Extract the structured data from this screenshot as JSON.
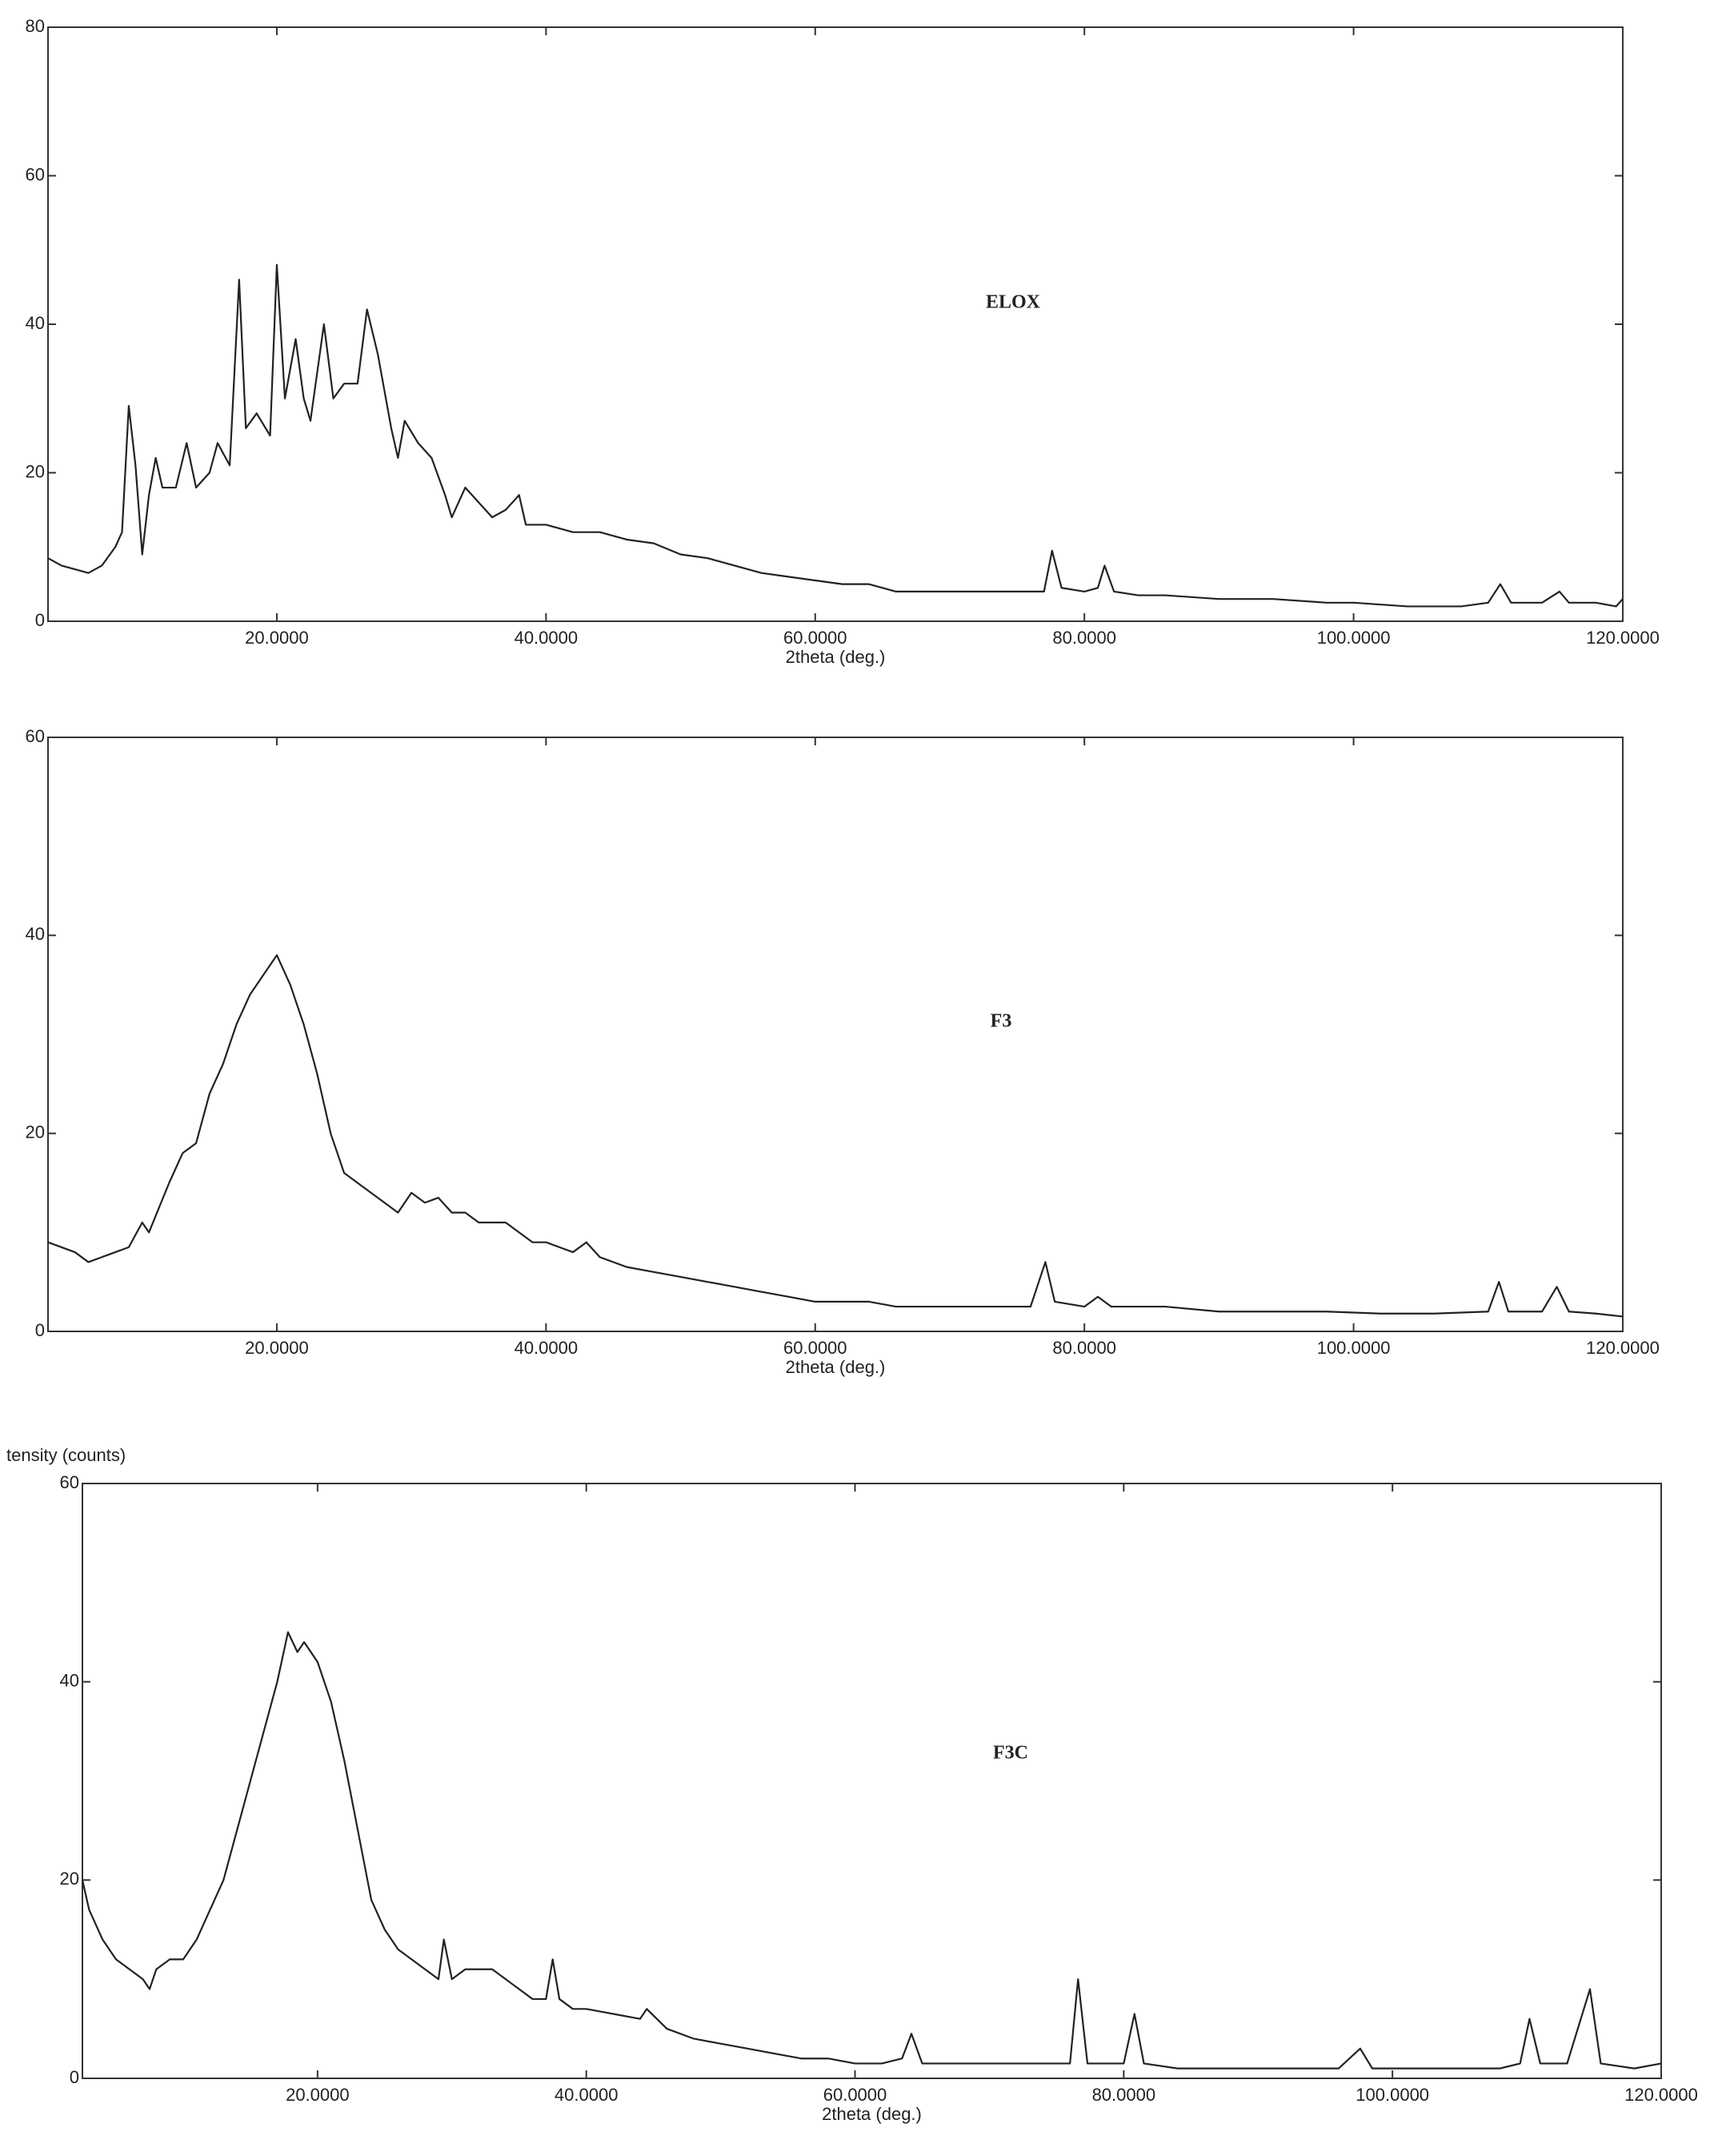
{
  "chart_data": [
    {
      "type": "line",
      "annotation": "ELOX",
      "xlabel": "2theta (deg.)",
      "color": "#222222",
      "xlim": [
        3,
        120
      ],
      "ylim": [
        0,
        80
      ],
      "xticks": [
        {
          "value": 20,
          "label": "20.0000"
        },
        {
          "value": 40,
          "label": "40.0000"
        },
        {
          "value": 60,
          "label": "60.0000"
        },
        {
          "value": 80,
          "label": "80.0000"
        },
        {
          "value": 100,
          "label": "100.0000"
        },
        {
          "value": 120,
          "label": "120.0000"
        }
      ],
      "yticks": [
        0,
        20,
        40,
        60,
        80
      ],
      "x": [
        3,
        4,
        5,
        6,
        7,
        8,
        8.5,
        9,
        9.5,
        10,
        10.5,
        11,
        11.5,
        12.5,
        13.3,
        14,
        15,
        15.6,
        16.5,
        17.2,
        17.7,
        18.5,
        19.5,
        20,
        20.6,
        21.4,
        22,
        22.5,
        23.5,
        24.2,
        25,
        26,
        26.7,
        27.5,
        28.5,
        29,
        29.5,
        30.5,
        31.5,
        32.5,
        33,
        34,
        35,
        36,
        37,
        38,
        38.5,
        40,
        42,
        44,
        46,
        48,
        50,
        52,
        54,
        56,
        58,
        60,
        62,
        64,
        66,
        68,
        70,
        72,
        74,
        76,
        77,
        77.6,
        78.3,
        80,
        81,
        81.5,
        82.2,
        84,
        86,
        90,
        94,
        98,
        100,
        104,
        108,
        110,
        110.9,
        111.7,
        114,
        115.3,
        116,
        118,
        119.5,
        120
      ],
      "values": [
        8.5,
        7.5,
        7,
        6.5,
        7.5,
        10,
        12,
        29,
        21,
        9,
        17,
        22,
        18,
        18,
        24,
        18,
        20,
        24,
        21,
        46,
        26,
        28,
        25,
        48,
        30,
        38,
        30,
        27,
        40,
        30,
        32,
        32,
        42,
        36,
        26,
        22,
        27,
        24,
        22,
        17,
        14,
        18,
        16,
        14,
        15,
        17,
        13,
        13,
        12,
        12,
        11,
        10.5,
        9,
        8.5,
        7.5,
        6.5,
        6,
        5.5,
        5,
        5,
        4,
        4,
        4,
        4,
        4,
        4,
        4,
        9.5,
        4.5,
        4,
        4.5,
        7.5,
        4,
        3.5,
        3.5,
        3,
        3,
        2.5,
        2.5,
        2,
        2,
        2.5,
        5,
        2.5,
        2.5,
        4,
        2.5,
        2.5,
        2,
        3
      ]
    },
    {
      "type": "line",
      "annotation": "F3",
      "xlabel": "2theta (deg.)",
      "color": "#222222",
      "xlim": [
        3,
        120
      ],
      "ylim": [
        0,
        60
      ],
      "xticks": [
        {
          "value": 20,
          "label": "20.0000"
        },
        {
          "value": 40,
          "label": "40.0000"
        },
        {
          "value": 60,
          "label": "60.0000"
        },
        {
          "value": 80,
          "label": "80.0000"
        },
        {
          "value": 100,
          "label": "100.0000"
        },
        {
          "value": 120,
          "label": "120.0000"
        }
      ],
      "yticks": [
        0,
        20,
        40,
        60
      ],
      "x": [
        3,
        5,
        6,
        8,
        9,
        10,
        10.5,
        12,
        13,
        14,
        15,
        16,
        17,
        18,
        19,
        20,
        21,
        22,
        23,
        24,
        25,
        26,
        27,
        28,
        29,
        30,
        31,
        32,
        33,
        34,
        35,
        36,
        37,
        38,
        39,
        40,
        41,
        42,
        43,
        44,
        46,
        48,
        50,
        52,
        54,
        56,
        58,
        60,
        62,
        64,
        66,
        70,
        74,
        76,
        77.1,
        77.8,
        80,
        81,
        82,
        86,
        90,
        94,
        98,
        102,
        106,
        110,
        110.8,
        111.5,
        114,
        115.1,
        116,
        118,
        120
      ],
      "values": [
        9,
        8,
        7,
        8,
        8.5,
        11,
        10,
        15,
        18,
        19,
        24,
        27,
        31,
        34,
        36,
        38,
        35,
        31,
        26,
        20,
        16,
        15,
        14,
        13,
        12,
        14,
        13,
        13.5,
        12,
        12,
        11,
        11,
        11,
        10,
        9,
        9,
        8.5,
        8,
        9,
        7.5,
        6.5,
        6,
        5.5,
        5,
        4.5,
        4,
        3.5,
        3,
        3,
        3,
        2.5,
        2.5,
        2.5,
        2.5,
        7,
        3,
        2.5,
        3.5,
        2.5,
        2.5,
        2,
        2,
        2,
        1.8,
        1.8,
        2,
        5,
        2,
        2,
        4.5,
        2,
        1.8,
        1.5
      ]
    },
    {
      "type": "line",
      "annotation": "F3C",
      "xlabel": "2theta (deg.)",
      "ylabel": "tensity (counts)",
      "color": "#222222",
      "xlim": [
        2.5,
        120
      ],
      "ylim": [
        0,
        60
      ],
      "xticks": [
        {
          "value": 20,
          "label": "20.0000"
        },
        {
          "value": 40,
          "label": "40.0000"
        },
        {
          "value": 60,
          "label": "60.0000"
        },
        {
          "value": 80,
          "label": "80.0000"
        },
        {
          "value": 100,
          "label": "100.0000"
        },
        {
          "value": 120,
          "label": "120.0000"
        }
      ],
      "yticks": [
        0,
        20,
        40,
        60
      ],
      "x": [
        2.5,
        3,
        4,
        5,
        6,
        7,
        7.5,
        8,
        9,
        10,
        11,
        12,
        13,
        14,
        15,
        16,
        17,
        17.8,
        18.5,
        19,
        20,
        21,
        22,
        23,
        24,
        25,
        26,
        27,
        28,
        29,
        29.4,
        30,
        31,
        32,
        33,
        34,
        35,
        36,
        37,
        37.5,
        38,
        39,
        40,
        42,
        44,
        44.5,
        46,
        48,
        50,
        52,
        54,
        56,
        58,
        60,
        62,
        63.5,
        64.2,
        65,
        68,
        72,
        76,
        76.6,
        77.3,
        80,
        80.8,
        81.5,
        84,
        90,
        96,
        97.6,
        98.5,
        104,
        108,
        109.5,
        110.2,
        111,
        113,
        114.7,
        115.5,
        118,
        120
      ],
      "values": [
        20,
        17,
        14,
        12,
        11,
        10,
        9,
        11,
        12,
        12,
        14,
        17,
        20,
        25,
        30,
        35,
        40,
        45,
        43,
        44,
        42,
        38,
        32,
        25,
        18,
        15,
        13,
        12,
        11,
        10,
        14,
        10,
        11,
        11,
        11,
        10,
        9,
        8,
        8,
        12,
        8,
        7,
        7,
        6.5,
        6,
        7,
        5,
        4,
        3.5,
        3,
        2.5,
        2,
        2,
        1.5,
        1.5,
        2,
        4.5,
        1.5,
        1.5,
        1.5,
        1.5,
        10,
        1.5,
        1.5,
        6.5,
        1.5,
        1,
        1,
        1,
        3,
        1,
        1,
        1,
        1.5,
        6,
        1.5,
        1.5,
        9,
        1.5,
        1,
        1.5
      ]
    }
  ]
}
